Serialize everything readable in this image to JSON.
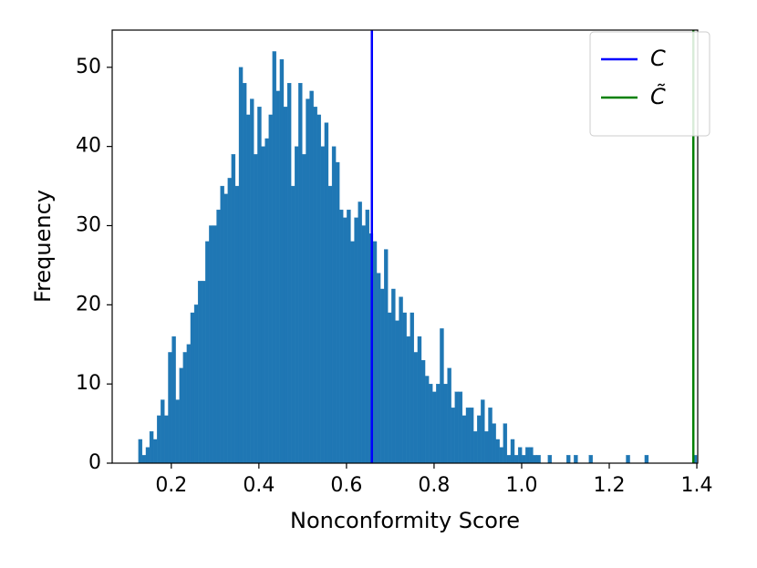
{
  "chart_data": {
    "type": "histogram",
    "xlabel": "Nonconformity Score",
    "ylabel": "Frequency",
    "bins": [
      0.125,
      0.1335,
      0.142,
      0.1505,
      0.159,
      0.1675,
      0.176,
      0.1845,
      0.193,
      0.2015,
      0.21,
      0.2185,
      0.227,
      0.2355,
      0.244,
      0.2525,
      0.261,
      0.2695,
      0.278,
      0.2865,
      0.295,
      0.3035,
      0.312,
      0.3205,
      0.329,
      0.3375,
      0.346,
      0.3545,
      0.363,
      0.3715,
      0.38,
      0.3885,
      0.397,
      0.4055,
      0.414,
      0.4225,
      0.431,
      0.4395,
      0.448,
      0.4565,
      0.465,
      0.4735,
      0.482,
      0.4905,
      0.499,
      0.5075,
      0.516,
      0.5245,
      0.533,
      0.5415,
      0.55,
      0.5585,
      0.567,
      0.5755,
      0.584,
      0.5925,
      0.601,
      0.6095,
      0.618,
      0.6265,
      0.635,
      0.6435,
      0.652,
      0.6605,
      0.669,
      0.6775,
      0.686,
      0.6945,
      0.703,
      0.7115,
      0.72,
      0.7285,
      0.737,
      0.7455,
      0.754,
      0.7625,
      0.771,
      0.7795,
      0.788,
      0.7965,
      0.805,
      0.8135,
      0.822,
      0.8305,
      0.839,
      0.8475,
      0.856,
      0.8645,
      0.873,
      0.8815,
      0.89,
      0.8985,
      0.907,
      0.9155,
      0.924,
      0.9325,
      0.941,
      0.9495,
      0.958,
      0.9665,
      0.975,
      0.9835,
      0.992,
      1.0005,
      1.009,
      1.0175,
      1.026,
      1.0345,
      1.043,
      1.0515,
      1.06,
      1.0685,
      1.077,
      1.0855,
      1.094,
      1.1025,
      1.111,
      1.1195,
      1.128,
      1.1365,
      1.145,
      1.1535,
      1.162,
      1.1705,
      1.179,
      1.1875,
      1.196,
      1.2045,
      1.213,
      1.2215,
      1.23,
      1.2385,
      1.247,
      1.2555,
      1.264,
      1.2725,
      1.281,
      1.2895,
      1.298,
      1.3065,
      1.315,
      1.3235,
      1.332,
      1.3405,
      1.349,
      1.3575,
      1.366,
      1.3745,
      1.383,
      1.3915,
      1.4
    ],
    "counts": [
      3,
      1,
      2,
      4,
      3,
      6,
      8,
      6,
      14,
      16,
      8,
      12,
      14,
      15,
      19,
      20,
      23,
      23,
      28,
      30,
      30,
      32,
      35,
      34,
      36,
      39,
      35,
      50,
      48,
      44,
      46,
      39,
      45,
      40,
      41,
      44,
      52,
      47,
      51,
      45,
      48,
      35,
      40,
      48,
      39,
      46,
      47,
      45,
      44,
      40,
      43,
      35,
      40,
      38,
      32,
      31,
      32,
      28,
      31,
      33,
      30,
      32,
      29,
      28,
      24,
      22,
      27,
      19,
      22,
      18,
      21,
      19,
      16,
      19,
      14,
      16,
      13,
      11,
      10,
      9,
      10,
      17,
      10,
      12,
      7,
      9,
      9,
      6,
      7,
      7,
      4,
      6,
      8,
      4,
      7,
      5,
      3,
      2,
      5,
      1,
      3,
      1,
      2,
      1,
      2,
      2,
      1,
      1,
      0,
      0,
      1,
      0,
      0,
      0,
      0,
      1,
      0,
      1,
      0,
      0,
      0,
      1,
      0,
      0,
      0,
      0,
      0,
      0,
      0,
      0,
      0,
      1,
      0,
      0,
      0,
      0,
      1,
      0,
      0,
      0,
      0,
      0,
      0,
      0,
      0,
      0,
      0,
      0,
      0,
      1
    ],
    "color": "#1f77b4",
    "lines": [
      {
        "name": "C",
        "color": "#0000ff",
        "x": 0.658
      },
      {
        "name": "C̃",
        "color": "#008000",
        "x": 1.392
      }
    ],
    "xlim": [
      0.065,
      1.402
    ],
    "ylim": [
      0,
      54.7
    ],
    "xticks": [
      0.2,
      0.4,
      0.6,
      0.8,
      {
        "value": 1,
        "label": "1.0"
      },
      1.2,
      1.4
    ],
    "yticks": [
      0,
      10,
      20,
      30,
      40,
      50
    ],
    "legend": "upper right"
  }
}
